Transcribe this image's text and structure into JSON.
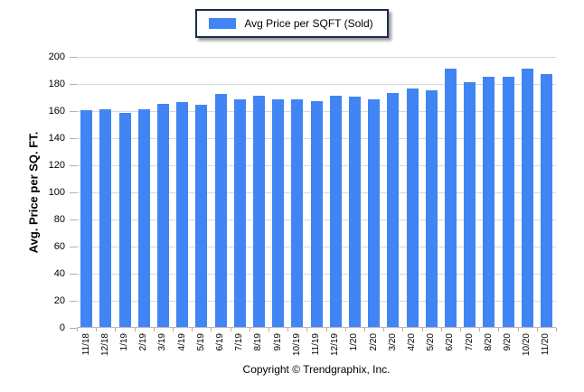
{
  "legend": {
    "label": "Avg Price per SQFT (Sold)"
  },
  "y_axis": {
    "title": "Avg. Price per SQ. FT."
  },
  "footer": {
    "copyright": "Copyright © Trendgraphix, Inc."
  },
  "colors": {
    "bar": "#4184f3",
    "grid": "#d9d9d9",
    "axis": "#b8b8b8",
    "tick": "#b0b0b0",
    "legend_border": "#1b2b4d"
  },
  "chart_data": {
    "type": "bar",
    "title": "",
    "legend_entries": [
      "Avg Price per SQFT (Sold)"
    ],
    "legend_position": "top-center",
    "xlabel": "",
    "ylabel": "Avg. Price per SQ. FT.",
    "ylim": [
      0,
      200
    ],
    "yticks": [
      0,
      20,
      40,
      60,
      80,
      100,
      120,
      140,
      160,
      180,
      200
    ],
    "grid": true,
    "categories": [
      "11/18",
      "12/18",
      "1/19",
      "2/19",
      "3/19",
      "4/19",
      "5/19",
      "6/19",
      "7/19",
      "8/19",
      "9/19",
      "10/19",
      "11/19",
      "12/19",
      "1/20",
      "2/20",
      "3/20",
      "4/20",
      "5/20",
      "6/20",
      "7/20",
      "8/20",
      "9/20",
      "10/20",
      "11/20"
    ],
    "values": [
      160,
      161,
      158,
      161,
      165,
      166,
      164,
      172,
      168,
      171,
      168,
      168,
      167,
      171,
      170,
      168,
      173,
      176,
      175,
      191,
      181,
      185,
      185,
      191,
      187
    ]
  }
}
